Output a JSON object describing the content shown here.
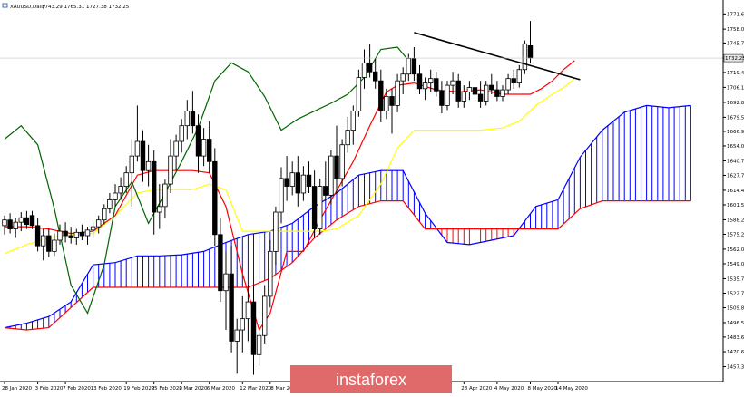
{
  "header": {
    "symbol_label": "XAUUSD,Daily",
    "ohlc_label": "1743.29 1765.31 1727.38 1732.25"
  },
  "watermark": {
    "text": "instaforex",
    "bg_color": "#e06a6a"
  },
  "colors": {
    "background": "#ffffff",
    "bull_candle": "#ffffff",
    "bear_candle": "#000000",
    "tenkan": "#ff0000",
    "kijun": "#ffff00",
    "chikou": "#006400",
    "senkou_a": "#0000ff",
    "senkou_b": "#ff0000",
    "trendline": "#000000",
    "price_tag_bg": "#e8e8e8"
  },
  "chart_data": {
    "type": "candlestick",
    "indicator": "ichimoku",
    "ylim": [
      1444.0,
      1784.0
    ],
    "last_price_label": "1732.25",
    "y_ticks": [
      "1771.60",
      "1758.05",
      "1745.70",
      "1732.25",
      "1719.45",
      "1706.15",
      "1692.80",
      "1679.50",
      "1666.95",
      "1654.00",
      "1640.70",
      "1627.75",
      "1614.45",
      "1601.50",
      "1588.20",
      "1575.25",
      "1562.00",
      "1549.00",
      "1535.70",
      "1522.75",
      "1509.80",
      "1496.55",
      "1483.65",
      "1470.60",
      "1457.30"
    ],
    "x_ticks": [
      {
        "i": 0,
        "label": "28 Jan 2020"
      },
      {
        "i": 6,
        "label": "3 Feb 2020"
      },
      {
        "i": 11,
        "label": "7 Feb 2020"
      },
      {
        "i": 16,
        "label": "13 Feb 2020"
      },
      {
        "i": 22,
        "label": "19 Feb 2020"
      },
      {
        "i": 27,
        "label": "25 Feb 2020"
      },
      {
        "i": 32,
        "label": "2 Mar 2020"
      },
      {
        "i": 37,
        "label": "6 Mar 2020"
      },
      {
        "i": 43,
        "label": "12 Mar 2020"
      },
      {
        "i": 48,
        "label": "18 Mar 2020"
      },
      {
        "i": 83,
        "label": "28 Apr 2020"
      },
      {
        "i": 89,
        "label": "4 May 2020"
      },
      {
        "i": 95,
        "label": "8 May 2020"
      },
      {
        "i": 100,
        "label": "14 May 2020"
      }
    ],
    "candles": [
      {
        "o": 1583,
        "h": 1592,
        "l": 1575,
        "c": 1588
      },
      {
        "o": 1588,
        "h": 1594,
        "l": 1576,
        "c": 1580
      },
      {
        "o": 1580,
        "h": 1590,
        "l": 1572,
        "c": 1586
      },
      {
        "o": 1586,
        "h": 1595,
        "l": 1578,
        "c": 1590
      },
      {
        "o": 1590,
        "h": 1596,
        "l": 1580,
        "c": 1584
      },
      {
        "o": 1592,
        "h": 1596,
        "l": 1580,
        "c": 1583
      },
      {
        "o": 1583,
        "h": 1590,
        "l": 1560,
        "c": 1565
      },
      {
        "o": 1565,
        "h": 1580,
        "l": 1552,
        "c": 1574
      },
      {
        "o": 1574,
        "h": 1580,
        "l": 1555,
        "c": 1560
      },
      {
        "o": 1560,
        "h": 1576,
        "l": 1556,
        "c": 1570
      },
      {
        "o": 1570,
        "h": 1584,
        "l": 1566,
        "c": 1578
      },
      {
        "o": 1578,
        "h": 1586,
        "l": 1568,
        "c": 1574
      },
      {
        "o": 1574,
        "h": 1582,
        "l": 1567,
        "c": 1572
      },
      {
        "o": 1572,
        "h": 1580,
        "l": 1566,
        "c": 1577
      },
      {
        "o": 1577,
        "h": 1584,
        "l": 1570,
        "c": 1574
      },
      {
        "o": 1574,
        "h": 1582,
        "l": 1566,
        "c": 1579
      },
      {
        "o": 1579,
        "h": 1586,
        "l": 1572,
        "c": 1582
      },
      {
        "o": 1582,
        "h": 1592,
        "l": 1576,
        "c": 1588
      },
      {
        "o": 1588,
        "h": 1602,
        "l": 1584,
        "c": 1598
      },
      {
        "o": 1598,
        "h": 1612,
        "l": 1594,
        "c": 1606
      },
      {
        "o": 1606,
        "h": 1620,
        "l": 1600,
        "c": 1612
      },
      {
        "o": 1612,
        "h": 1626,
        "l": 1606,
        "c": 1618
      },
      {
        "o": 1618,
        "h": 1636,
        "l": 1612,
        "c": 1630
      },
      {
        "o": 1630,
        "h": 1660,
        "l": 1600,
        "c": 1645
      },
      {
        "o": 1645,
        "h": 1690,
        "l": 1640,
        "c": 1658
      },
      {
        "o": 1658,
        "h": 1668,
        "l": 1622,
        "c": 1632
      },
      {
        "o": 1632,
        "h": 1655,
        "l": 1618,
        "c": 1640
      },
      {
        "o": 1640,
        "h": 1650,
        "l": 1575,
        "c": 1595
      },
      {
        "o": 1595,
        "h": 1620,
        "l": 1580,
        "c": 1600
      },
      {
        "o": 1600,
        "h": 1624,
        "l": 1590,
        "c": 1620
      },
      {
        "o": 1620,
        "h": 1660,
        "l": 1612,
        "c": 1645
      },
      {
        "o": 1645,
        "h": 1664,
        "l": 1632,
        "c": 1658
      },
      {
        "o": 1658,
        "h": 1678,
        "l": 1648,
        "c": 1672
      },
      {
        "o": 1672,
        "h": 1695,
        "l": 1660,
        "c": 1685
      },
      {
        "o": 1685,
        "h": 1703,
        "l": 1665,
        "c": 1672
      },
      {
        "o": 1672,
        "h": 1682,
        "l": 1630,
        "c": 1645
      },
      {
        "o": 1645,
        "h": 1670,
        "l": 1636,
        "c": 1660
      },
      {
        "o": 1660,
        "h": 1676,
        "l": 1630,
        "c": 1640
      },
      {
        "o": 1640,
        "h": 1652,
        "l": 1565,
        "c": 1575
      },
      {
        "o": 1575,
        "h": 1590,
        "l": 1515,
        "c": 1525
      },
      {
        "o": 1525,
        "h": 1560,
        "l": 1490,
        "c": 1540
      },
      {
        "o": 1540,
        "h": 1565,
        "l": 1470,
        "c": 1480
      },
      {
        "o": 1480,
        "h": 1500,
        "l": 1451,
        "c": 1490
      },
      {
        "o": 1490,
        "h": 1520,
        "l": 1470,
        "c": 1500
      },
      {
        "o": 1500,
        "h": 1530,
        "l": 1480,
        "c": 1515
      },
      {
        "o": 1515,
        "h": 1530,
        "l": 1450,
        "c": 1468
      },
      {
        "o": 1468,
        "h": 1495,
        "l": 1458,
        "c": 1485
      },
      {
        "o": 1485,
        "h": 1530,
        "l": 1478,
        "c": 1520
      },
      {
        "o": 1520,
        "h": 1570,
        "l": 1510,
        "c": 1560
      },
      {
        "o": 1560,
        "h": 1600,
        "l": 1548,
        "c": 1595
      },
      {
        "o": 1595,
        "h": 1635,
        "l": 1585,
        "c": 1625
      },
      {
        "o": 1625,
        "h": 1645,
        "l": 1605,
        "c": 1618
      },
      {
        "o": 1618,
        "h": 1640,
        "l": 1610,
        "c": 1630
      },
      {
        "o": 1630,
        "h": 1645,
        "l": 1600,
        "c": 1612
      },
      {
        "o": 1612,
        "h": 1636,
        "l": 1605,
        "c": 1628
      },
      {
        "o": 1628,
        "h": 1640,
        "l": 1612,
        "c": 1618
      },
      {
        "o": 1618,
        "h": 1632,
        "l": 1572,
        "c": 1580
      },
      {
        "o": 1580,
        "h": 1625,
        "l": 1575,
        "c": 1618
      },
      {
        "o": 1618,
        "h": 1640,
        "l": 1605,
        "c": 1610
      },
      {
        "o": 1610,
        "h": 1650,
        "l": 1602,
        "c": 1645
      },
      {
        "o": 1645,
        "h": 1672,
        "l": 1612,
        "c": 1625
      },
      {
        "o": 1625,
        "h": 1660,
        "l": 1618,
        "c": 1655
      },
      {
        "o": 1655,
        "h": 1680,
        "l": 1648,
        "c": 1668
      },
      {
        "o": 1668,
        "h": 1690,
        "l": 1655,
        "c": 1685
      },
      {
        "o": 1685,
        "h": 1722,
        "l": 1680,
        "c": 1715
      },
      {
        "o": 1715,
        "h": 1740,
        "l": 1705,
        "c": 1728
      },
      {
        "o": 1728,
        "h": 1745,
        "l": 1715,
        "c": 1720
      },
      {
        "o": 1720,
        "h": 1732,
        "l": 1705,
        "c": 1712
      },
      {
        "o": 1712,
        "h": 1722,
        "l": 1675,
        "c": 1685
      },
      {
        "o": 1685,
        "h": 1705,
        "l": 1678,
        "c": 1698
      },
      {
        "o": 1698,
        "h": 1705,
        "l": 1665,
        "c": 1690
      },
      {
        "o": 1690,
        "h": 1718,
        "l": 1684,
        "c": 1712
      },
      {
        "o": 1712,
        "h": 1724,
        "l": 1700,
        "c": 1718
      },
      {
        "o": 1718,
        "h": 1736,
        "l": 1712,
        "c": 1732
      },
      {
        "o": 1732,
        "h": 1742,
        "l": 1712,
        "c": 1718
      },
      {
        "o": 1718,
        "h": 1726,
        "l": 1700,
        "c": 1705
      },
      {
        "o": 1705,
        "h": 1715,
        "l": 1695,
        "c": 1710
      },
      {
        "o": 1710,
        "h": 1722,
        "l": 1702,
        "c": 1714
      },
      {
        "o": 1714,
        "h": 1720,
        "l": 1698,
        "c": 1703
      },
      {
        "o": 1703,
        "h": 1712,
        "l": 1683,
        "c": 1690
      },
      {
        "o": 1690,
        "h": 1712,
        "l": 1686,
        "c": 1708
      },
      {
        "o": 1708,
        "h": 1720,
        "l": 1700,
        "c": 1712
      },
      {
        "o": 1712,
        "h": 1718,
        "l": 1688,
        "c": 1694
      },
      {
        "o": 1694,
        "h": 1708,
        "l": 1688,
        "c": 1702
      },
      {
        "o": 1702,
        "h": 1712,
        "l": 1695,
        "c": 1706
      },
      {
        "o": 1706,
        "h": 1715,
        "l": 1698,
        "c": 1700
      },
      {
        "o": 1700,
        "h": 1712,
        "l": 1688,
        "c": 1694
      },
      {
        "o": 1694,
        "h": 1712,
        "l": 1690,
        "c": 1708
      },
      {
        "o": 1708,
        "h": 1718,
        "l": 1700,
        "c": 1704
      },
      {
        "o": 1704,
        "h": 1712,
        "l": 1694,
        "c": 1698
      },
      {
        "o": 1698,
        "h": 1708,
        "l": 1694,
        "c": 1704
      },
      {
        "o": 1704,
        "h": 1718,
        "l": 1700,
        "c": 1714
      },
      {
        "o": 1714,
        "h": 1722,
        "l": 1705,
        "c": 1710
      },
      {
        "o": 1710,
        "h": 1726,
        "l": 1706,
        "c": 1722
      },
      {
        "o": 1722,
        "h": 1748,
        "l": 1718,
        "c": 1745
      },
      {
        "o": 1743.29,
        "h": 1765.31,
        "l": 1727.38,
        "c": 1732.25
      }
    ],
    "tenkan": [
      [
        0,
        1582
      ],
      [
        4,
        1582
      ],
      [
        8,
        1580
      ],
      [
        12,
        1576
      ],
      [
        16,
        1578
      ],
      [
        20,
        1592
      ],
      [
        24,
        1628
      ],
      [
        27,
        1632
      ],
      [
        30,
        1632
      ],
      [
        34,
        1632
      ],
      [
        37,
        1630
      ],
      [
        40,
        1600
      ],
      [
        43,
        1540
      ],
      [
        46,
        1490
      ],
      [
        48,
        1505
      ],
      [
        51,
        1560
      ],
      [
        54,
        1560
      ],
      [
        57,
        1588
      ],
      [
        60,
        1614
      ],
      [
        63,
        1640
      ],
      [
        66,
        1672
      ],
      [
        69,
        1702
      ],
      [
        71,
        1708
      ],
      [
        74,
        1710
      ],
      [
        78,
        1704
      ],
      [
        82,
        1702
      ],
      [
        86,
        1704
      ],
      [
        90,
        1700
      ],
      [
        93,
        1700
      ],
      [
        95,
        1700
      ],
      [
        97,
        1705
      ],
      [
        99,
        1712
      ],
      [
        101,
        1722
      ],
      [
        103,
        1730
      ]
    ],
    "kijun": [
      [
        0,
        1558
      ],
      [
        4,
        1566
      ],
      [
        8,
        1572
      ],
      [
        12,
        1575
      ],
      [
        16,
        1576
      ],
      [
        20,
        1592
      ],
      [
        24,
        1612
      ],
      [
        27,
        1615
      ],
      [
        30,
        1615
      ],
      [
        34,
        1615
      ],
      [
        37,
        1620
      ],
      [
        40,
        1615
      ],
      [
        43,
        1578
      ],
      [
        46,
        1578
      ],
      [
        50,
        1578
      ],
      [
        54,
        1578
      ],
      [
        57,
        1578
      ],
      [
        60,
        1580
      ],
      [
        64,
        1592
      ],
      [
        68,
        1620
      ],
      [
        71,
        1652
      ],
      [
        74,
        1668
      ],
      [
        78,
        1668
      ],
      [
        82,
        1668
      ],
      [
        86,
        1668
      ],
      [
        90,
        1670
      ],
      [
        93,
        1676
      ],
      [
        96,
        1690
      ],
      [
        99,
        1700
      ],
      [
        101,
        1706
      ],
      [
        103,
        1714
      ]
    ],
    "chikou": [
      [
        0,
        1660
      ],
      [
        3,
        1672
      ],
      [
        6,
        1655
      ],
      [
        9,
        1598
      ],
      [
        12,
        1530
      ],
      [
        15,
        1505
      ],
      [
        18,
        1548
      ],
      [
        20,
        1600
      ],
      [
        23,
        1622
      ],
      [
        26,
        1585
      ],
      [
        29,
        1612
      ],
      [
        32,
        1640
      ],
      [
        35,
        1670
      ],
      [
        38,
        1712
      ],
      [
        41,
        1728
      ],
      [
        44,
        1720
      ],
      [
        47,
        1698
      ],
      [
        50,
        1668
      ],
      [
        53,
        1678
      ],
      [
        56,
        1685
      ],
      [
        59,
        1692
      ],
      [
        62,
        1700
      ],
      [
        65,
        1715
      ],
      [
        68,
        1740
      ],
      [
        71,
        1742
      ],
      [
        73,
        1730
      ]
    ],
    "senkou_a": [
      [
        0,
        1492
      ],
      [
        4,
        1496
      ],
      [
        8,
        1502
      ],
      [
        12,
        1515
      ],
      [
        16,
        1548
      ],
      [
        20,
        1550
      ],
      [
        24,
        1556
      ],
      [
        28,
        1556
      ],
      [
        32,
        1557
      ],
      [
        36,
        1560
      ],
      [
        40,
        1568
      ],
      [
        44,
        1575
      ],
      [
        48,
        1578
      ],
      [
        52,
        1585
      ],
      [
        56,
        1600
      ],
      [
        60,
        1612
      ],
      [
        64,
        1628
      ],
      [
        68,
        1632
      ],
      [
        72,
        1632
      ],
      [
        76,
        1594
      ],
      [
        80,
        1568
      ],
      [
        84,
        1566
      ],
      [
        88,
        1570
      ],
      [
        92,
        1574
      ],
      [
        96,
        1600
      ],
      [
        100,
        1606
      ],
      [
        104,
        1644
      ],
      [
        108,
        1668
      ],
      [
        112,
        1684
      ],
      [
        116,
        1690
      ],
      [
        120,
        1688
      ],
      [
        124,
        1690
      ]
    ],
    "senkou_b": [
      [
        0,
        1492
      ],
      [
        4,
        1490
      ],
      [
        8,
        1492
      ],
      [
        12,
        1510
      ],
      [
        16,
        1528
      ],
      [
        20,
        1528
      ],
      [
        24,
        1528
      ],
      [
        28,
        1528
      ],
      [
        32,
        1528
      ],
      [
        36,
        1528
      ],
      [
        40,
        1528
      ],
      [
        44,
        1528
      ],
      [
        48,
        1536
      ],
      [
        52,
        1550
      ],
      [
        56,
        1572
      ],
      [
        60,
        1588
      ],
      [
        64,
        1600
      ],
      [
        68,
        1605
      ],
      [
        72,
        1605
      ],
      [
        76,
        1580
      ],
      [
        80,
        1580
      ],
      [
        84,
        1580
      ],
      [
        88,
        1580
      ],
      [
        92,
        1580
      ],
      [
        96,
        1580
      ],
      [
        100,
        1580
      ],
      [
        104,
        1598
      ],
      [
        108,
        1605
      ],
      [
        112,
        1605
      ],
      [
        116,
        1605
      ],
      [
        120,
        1605
      ],
      [
        124,
        1605
      ]
    ],
    "trendline": [
      [
        74,
        1755
      ],
      [
        104,
        1713
      ]
    ]
  }
}
